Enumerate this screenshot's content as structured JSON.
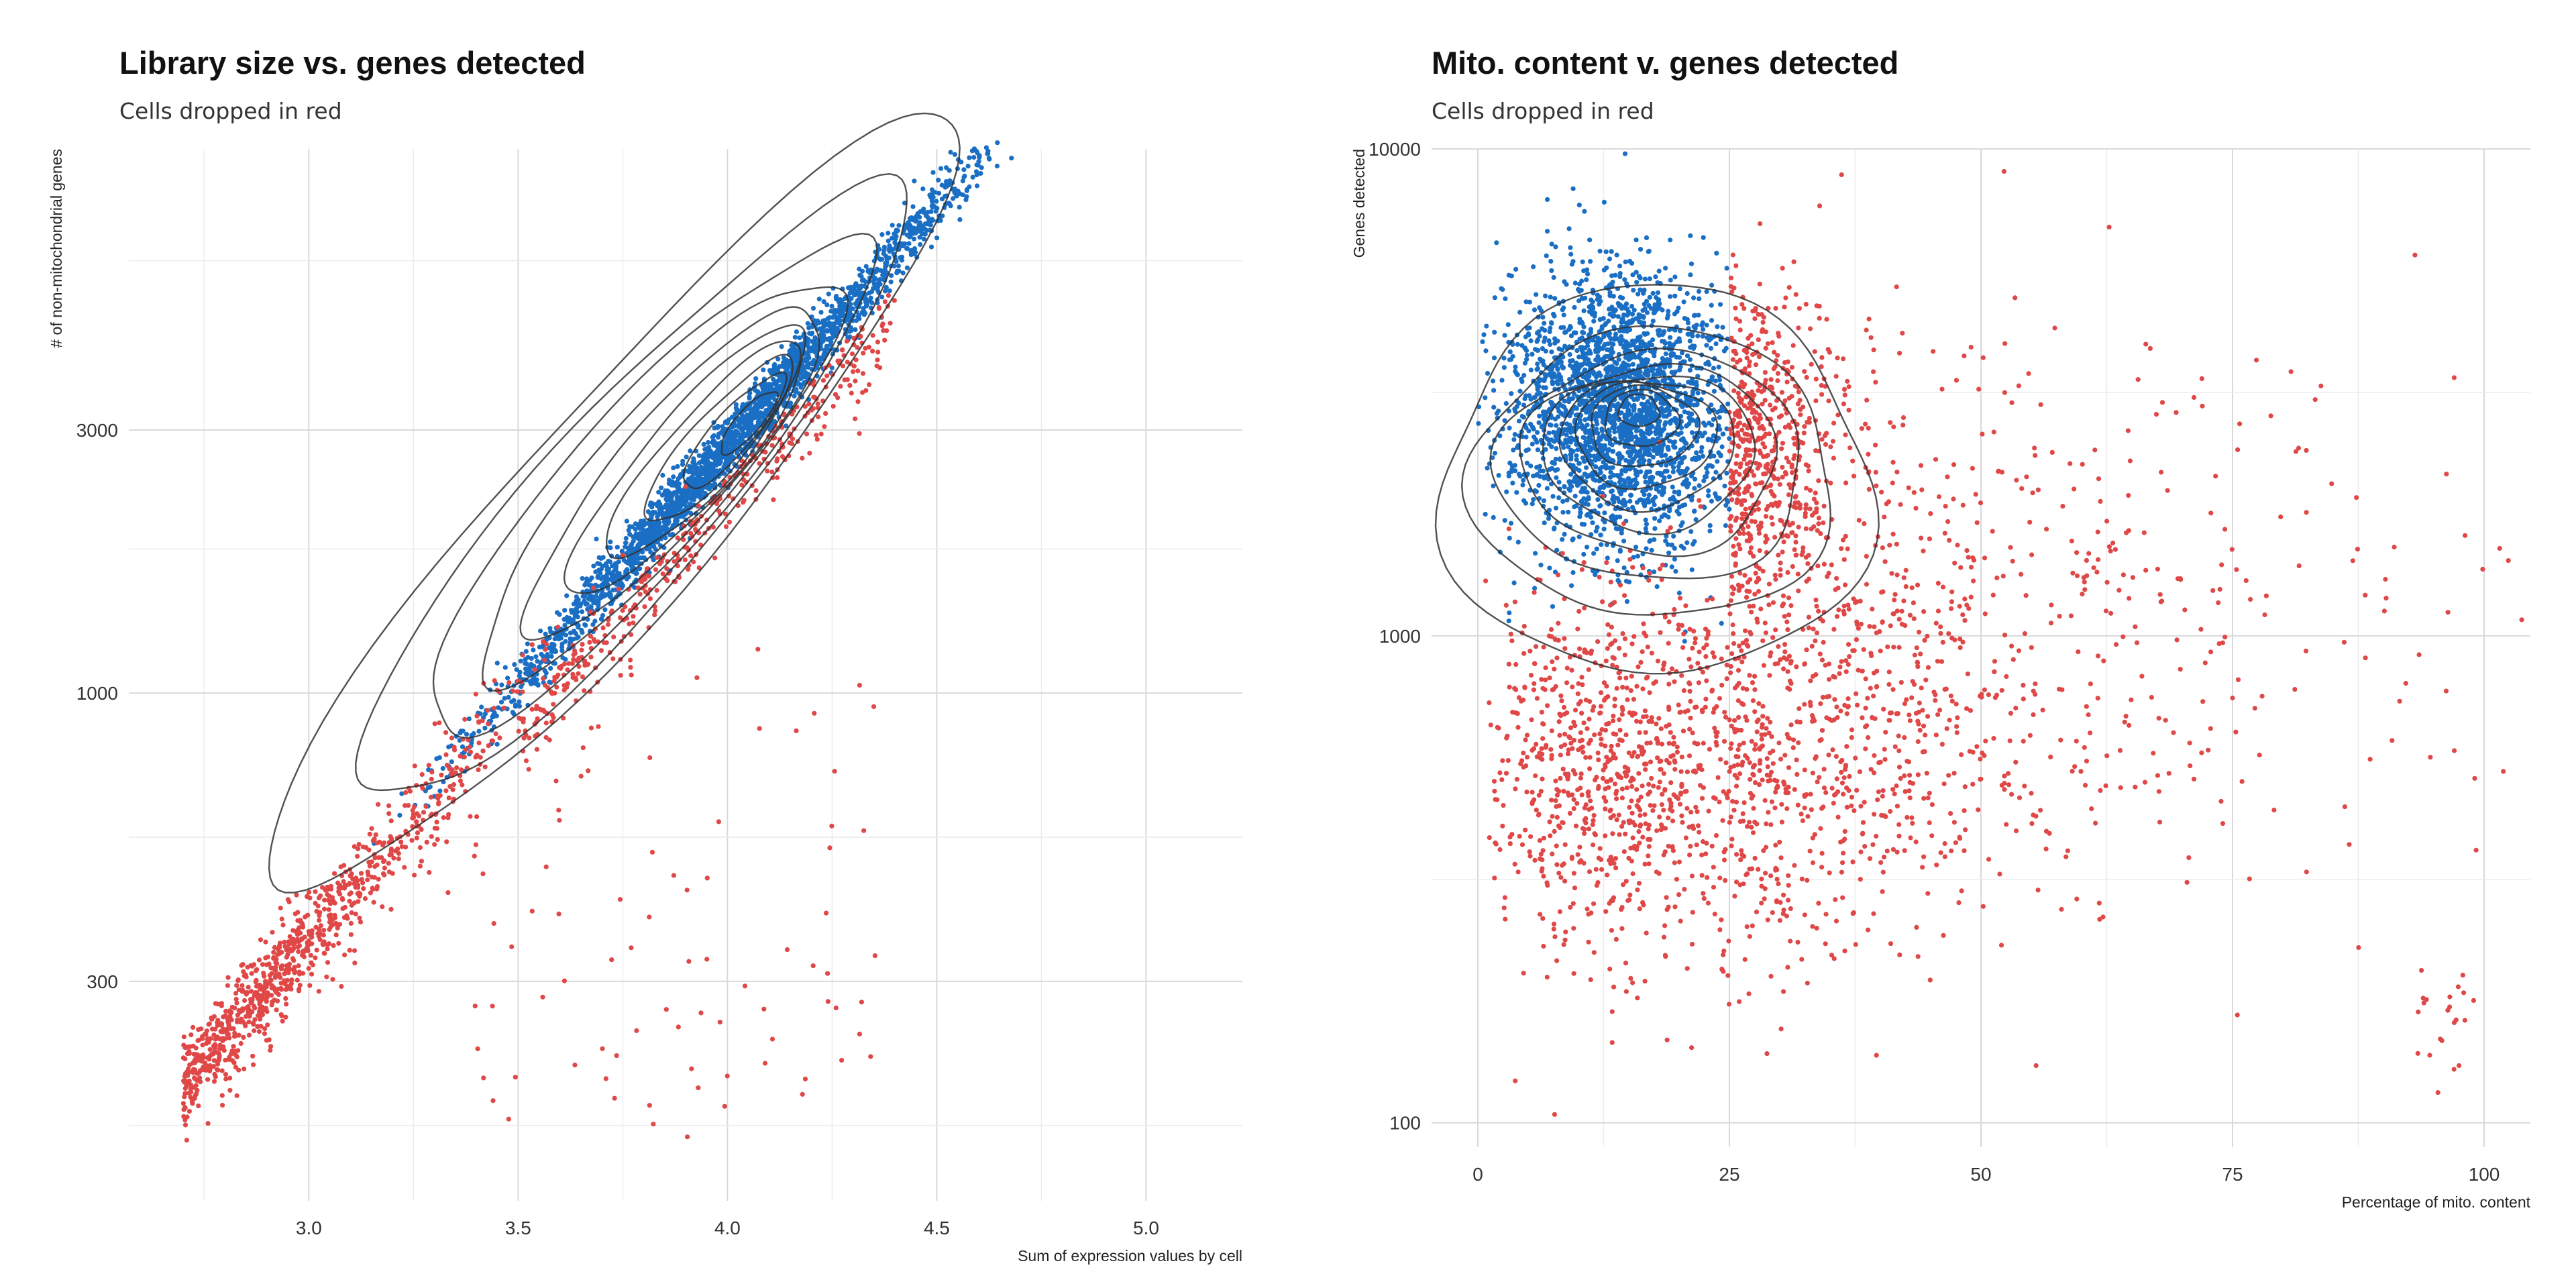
{
  "colors": {
    "kept": "#1a6fc4",
    "dropped": "#e04848",
    "contour": "#333333"
  },
  "chart_data": [
    {
      "type": "scatter",
      "title": "Library size vs. genes detected",
      "subtitle": "Cells dropped in red",
      "xlabel": "Sum of expression values by cell",
      "ylabel": "# of non-mitochondrial genes",
      "xlim": [
        2.57,
        5.23
      ],
      "ylim": [
        2.079,
        3.987
      ],
      "y_scale": "log10",
      "grid": true,
      "legend": "none",
      "x_ticks": [
        3.0,
        3.5,
        4.0,
        4.5,
        5.0
      ],
      "x_tick_labels": [
        "3.0",
        "3.5",
        "4.0",
        "4.5",
        "5.0"
      ],
      "y_ticks": [
        300,
        1000,
        3000
      ],
      "y_tick_labels": [
        "300",
        "1000",
        "3000"
      ],
      "series": [
        {
          "color": "#1a6fc4",
          "n_points": 9000,
          "trend": {
            "x_range": [
              3.1,
              5.05
            ],
            "y_log_intercept": 0.0,
            "y_log_slope": 0.862
          }
        },
        {
          "color": "#e04848",
          "n_points": 2600,
          "trend": {
            "x_range": [
              2.68,
              4.6
            ],
            "y_log_intercept": 0.0,
            "y_log_slope": 0.855
          }
        }
      ],
      "contour_levels": [
        0.9,
        0.8,
        0.7,
        0.6,
        0.5,
        0.4,
        0.3,
        0.2,
        0.1,
        0.05
      ]
    },
    {
      "type": "scatter",
      "title": "Mito. content v. genes detected",
      "subtitle": "Cells dropped in red",
      "xlabel": "Percentage of mito. content",
      "ylabel": "Genes detected",
      "xlim": [
        -4.6,
        104.6
      ],
      "ylim": [
        1.95,
        4.0
      ],
      "y_scale": "log10",
      "grid": true,
      "legend": "none",
      "x_ticks": [
        0,
        25,
        50,
        75,
        100
      ],
      "x_tick_labels": [
        "0",
        "25",
        "50",
        "75",
        "100"
      ],
      "y_ticks": [
        100,
        1000,
        10000
      ],
      "y_tick_labels": [
        "100",
        "1000",
        "10000"
      ],
      "series": [
        {
          "color": "#1a6fc4",
          "n_points": 9000,
          "center": {
            "x": 15,
            "y": 2900
          }
        },
        {
          "color": "#e04848",
          "n_points": 3400,
          "center": {
            "x": 30,
            "y": 900
          }
        }
      ],
      "contour_levels": [
        0.9,
        0.8,
        0.7,
        0.6,
        0.5,
        0.4,
        0.3,
        0.2,
        0.1,
        0.05
      ]
    }
  ]
}
